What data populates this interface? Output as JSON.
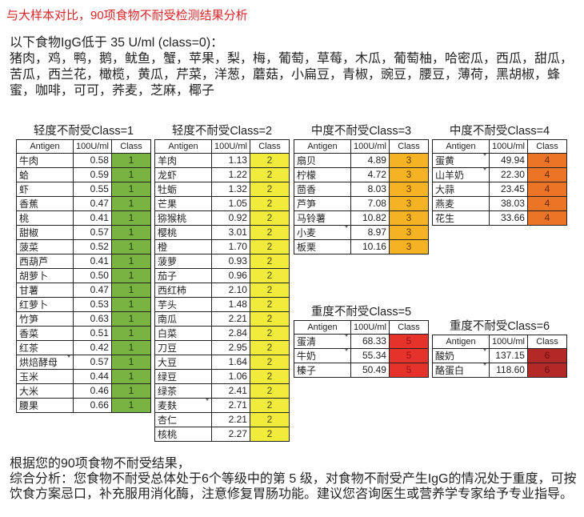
{
  "title": "与大样本对比，90项食物不耐受检测结果分析",
  "intro": {
    "heading": "以下食物IgG低于 35 U/ml (class=0)：",
    "foods": "猪肉，鸡，鸭，鹅，鱿鱼，蟹，苹果，梨，梅，葡萄，草莓，木瓜，葡萄柚，哈密瓜，西瓜，甜瓜，苦瓜，西兰花，橄榄，黄瓜，芹菜，洋葱，蘑菇，小扁豆，青椒，豌豆，腰豆，薄荷，黑胡椒，蜂蜜，咖啡，可可，荞麦，芝麻，椰子"
  },
  "columns": [
    "Antigen",
    "100U/ml",
    "Class"
  ],
  "tables": [
    {
      "caption": "轻度不耐受Class=1",
      "class": "1",
      "color": "#79b443",
      "text_color": "#1f3a10",
      "rows": [
        [
          "牛肉",
          "0.58",
          ""
        ],
        [
          "蛤",
          "0.59",
          ""
        ],
        [
          "虾",
          "0.55",
          ""
        ],
        [
          "香蕉",
          "0.47",
          ""
        ],
        [
          "桃",
          "0.41",
          ""
        ],
        [
          "甜椒",
          "0.57",
          ""
        ],
        [
          "菠菜",
          "0.52",
          ""
        ],
        [
          "西葫芦",
          "0.41",
          ""
        ],
        [
          "胡萝卜",
          "0.50",
          ""
        ],
        [
          "甘薯",
          "0.47",
          ""
        ],
        [
          "红萝卜",
          "0.53",
          ""
        ],
        [
          "竹笋",
          "0.63",
          ""
        ],
        [
          "香菜",
          "0.51",
          ""
        ],
        [
          "红茶",
          "0.42",
          ""
        ],
        [
          "烘焙酵母",
          "0.57",
          "*"
        ],
        [
          "玉米",
          "0.44",
          ""
        ],
        [
          "大米",
          "0.46",
          ""
        ],
        [
          "腰果",
          "0.66",
          ""
        ]
      ]
    },
    {
      "caption": "轻度不耐受Class=2",
      "class": "2",
      "color": "#f1ec3c",
      "text_color": "#4a4a10",
      "rows": [
        [
          "羊肉",
          "1.13",
          ""
        ],
        [
          "龙虾",
          "1.22",
          ""
        ],
        [
          "牡蛎",
          "1.32",
          ""
        ],
        [
          "芒果",
          "1.05",
          ""
        ],
        [
          "猕猴桃",
          "0.92",
          ""
        ],
        [
          "樱桃",
          "3.01",
          ""
        ],
        [
          "橙",
          "1.70",
          ""
        ],
        [
          "菠萝",
          "0.93",
          ""
        ],
        [
          "茄子",
          "0.96",
          ""
        ],
        [
          "西红柿",
          "2.10",
          ""
        ],
        [
          "芋头",
          "1.48",
          ""
        ],
        [
          "南瓜",
          "2.21",
          ""
        ],
        [
          "白菜",
          "2.84",
          ""
        ],
        [
          "刀豆",
          "2.95",
          ""
        ],
        [
          "大豆",
          "1.64",
          ""
        ],
        [
          "绿豆",
          "1.06",
          ""
        ],
        [
          "绿茶",
          "2.41",
          ""
        ],
        [
          "麦麸",
          "2.71",
          "*"
        ],
        [
          "杏仁",
          "2.21",
          ""
        ],
        [
          "核桃",
          "2.27",
          ""
        ]
      ]
    },
    {
      "caption": "中度不耐受Class=3",
      "class": "3",
      "color": "#f5b223",
      "text_color": "#6a3f00",
      "rows": [
        [
          "扇贝",
          "4.89",
          ""
        ],
        [
          "柠檬",
          "4.72",
          ""
        ],
        [
          "茴香",
          "8.03",
          ""
        ],
        [
          "芦笋",
          "7.08",
          ""
        ],
        [
          "马铃薯",
          "10.82",
          ""
        ],
        [
          "小麦",
          "8.97",
          "*"
        ],
        [
          "板栗",
          "10.16",
          ""
        ]
      ]
    },
    {
      "caption": "中度不耐受Class=4",
      "class": "4",
      "color": "#ec7426",
      "text_color": "#6a2a00",
      "rows": [
        [
          "蛋黄",
          "49.94",
          "*"
        ],
        [
          "山羊奶",
          "22.30",
          "*"
        ],
        [
          "大蒜",
          "23.45",
          ""
        ],
        [
          "燕麦",
          "38.03",
          ""
        ],
        [
          "花生",
          "33.66",
          ""
        ]
      ]
    },
    {
      "caption": "重度不耐受Class=5",
      "class": "5",
      "color": "#e5322a",
      "text_color": "#9a1010",
      "rows": [
        [
          "蛋清",
          "68.33",
          "*"
        ],
        [
          "牛奶",
          "55.34",
          "*"
        ],
        [
          "榛子",
          "50.49",
          ""
        ]
      ]
    },
    {
      "caption": "重度不耐受Class=6",
      "class": "6",
      "color": "#b42828",
      "text_color": "#6a1010",
      "rows": [
        [
          "酸奶",
          "137.15",
          "*"
        ],
        [
          "酪蛋白",
          "118.60",
          "*"
        ]
      ]
    }
  ],
  "summary": {
    "line1": "根据您的90项食物不耐受结果，",
    "line2": "综合分析：您食物不耐受总体处于6个等级中的第  5  级，对食物不耐受产生IgG的情况处于重度，可按饮食方案忌口，补充服用消化酶，注意修复胃肠功能。建议您咨询医生或营养学专家给予专业指导。"
  }
}
